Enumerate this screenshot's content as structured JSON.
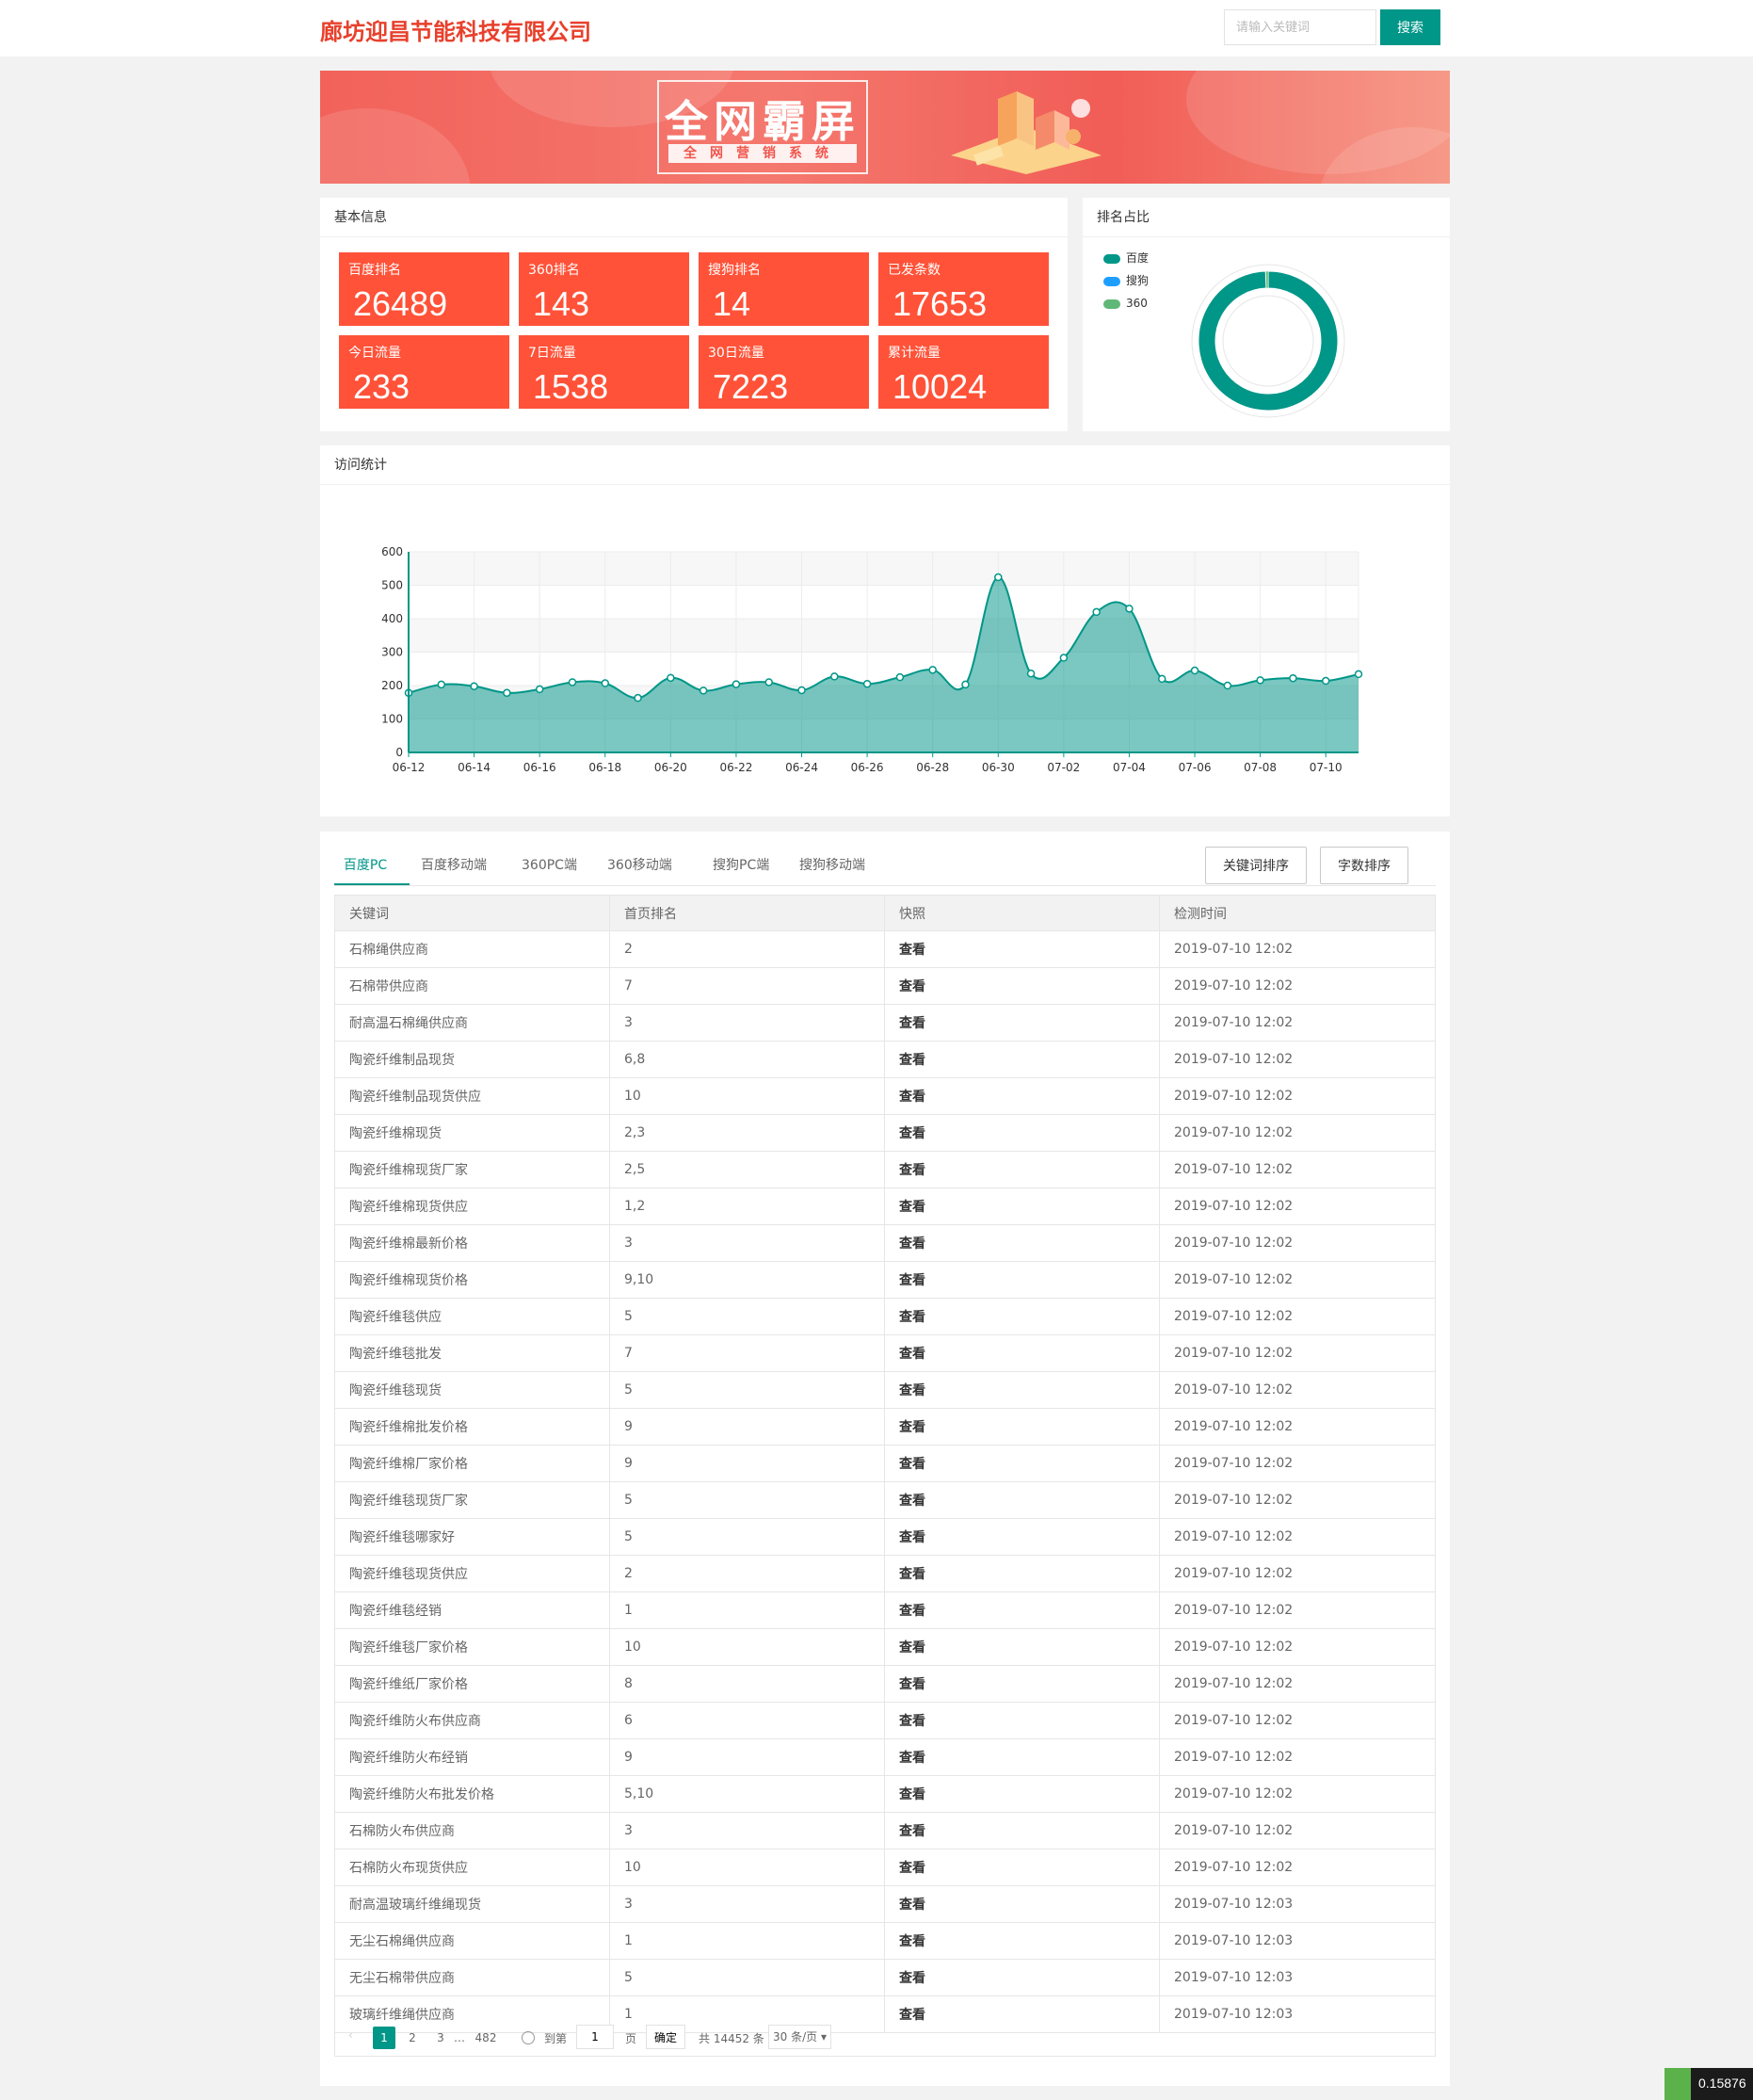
{
  "header": {
    "logo": "廊坊迎昌节能科技有限公司",
    "search_placeholder": "请输入关键词",
    "search_button": "搜索"
  },
  "banner": {
    "title": "全网霸屏",
    "subtitle": "全网营销系统"
  },
  "basic_info": {
    "title": "基本信息",
    "stats": [
      {
        "label": "百度排名",
        "value": "26489"
      },
      {
        "label": "360排名",
        "value": "143"
      },
      {
        "label": "搜狗排名",
        "value": "14"
      },
      {
        "label": "已发条数",
        "value": "17653"
      },
      {
        "label": "今日流量",
        "value": "233"
      },
      {
        "label": "7日流量",
        "value": "1538"
      },
      {
        "label": "30日流量",
        "value": "7223"
      },
      {
        "label": "累计流量",
        "value": "10024"
      }
    ]
  },
  "rank_ratio": {
    "title": "排名占比",
    "legend": [
      {
        "name": "百度",
        "color": "#009688"
      },
      {
        "name": "搜狗",
        "color": "#1e9fff"
      },
      {
        "name": "360",
        "color": "#5fb878"
      }
    ]
  },
  "visit_stats": {
    "title": "访问统计"
  },
  "chart_data": [
    {
      "type": "pie",
      "title": "",
      "categories": [
        "百度",
        "搜狗",
        "360"
      ],
      "values": [
        26489,
        14,
        143
      ],
      "colors": [
        "#009688",
        "#1e9fff",
        "#5fb878"
      ],
      "legend_position": "top-left"
    },
    {
      "type": "area",
      "title": "",
      "xlabel": "",
      "ylabel": "",
      "x": [
        "06-12",
        "06-13",
        "06-14",
        "06-15",
        "06-16",
        "06-17",
        "06-18",
        "06-19",
        "06-20",
        "06-21",
        "06-22",
        "06-23",
        "06-24",
        "06-25",
        "06-26",
        "06-27",
        "06-28",
        "06-29",
        "06-30",
        "07-01",
        "07-02",
        "07-03",
        "07-04",
        "07-05",
        "07-06",
        "07-07",
        "07-08",
        "07-09",
        "07-10",
        "07-11"
      ],
      "x_tick_labels": [
        "06-12",
        "06-14",
        "06-16",
        "06-18",
        "06-20",
        "06-22",
        "06-24",
        "06-26",
        "06-28",
        "06-30",
        "07-02",
        "07-04",
        "07-06",
        "07-08",
        "07-10"
      ],
      "values": [
        178,
        203,
        198,
        178,
        189,
        210,
        207,
        163,
        223,
        185,
        204,
        210,
        186,
        227,
        205,
        225,
        247,
        203,
        524,
        236,
        283,
        420,
        430,
        220,
        245,
        200,
        216,
        222,
        214,
        234
      ],
      "ylim": [
        0,
        600
      ],
      "yticks": [
        0,
        100,
        200,
        300,
        400,
        500,
        600
      ],
      "color": "#009688",
      "grid": true
    }
  ],
  "keywords_panel": {
    "tabs": [
      "百度PC",
      "百度移动端",
      "360PC端",
      "360移动端",
      "搜狗PC端",
      "搜狗移动端"
    ],
    "active_tab": 0,
    "sort_buttons": [
      "关键词排序",
      "字数排序"
    ],
    "columns": [
      "关键词",
      "首页排名",
      "快照",
      "检测时间"
    ],
    "rows": [
      [
        "石棉绳供应商",
        "2",
        "查看",
        "2019-07-10 12:02"
      ],
      [
        "石棉带供应商",
        "7",
        "查看",
        "2019-07-10 12:02"
      ],
      [
        "耐高温石棉绳供应商",
        "3",
        "查看",
        "2019-07-10 12:02"
      ],
      [
        "陶瓷纤维制品现货",
        "6,8",
        "查看",
        "2019-07-10 12:02"
      ],
      [
        "陶瓷纤维制品现货供应",
        "10",
        "查看",
        "2019-07-10 12:02"
      ],
      [
        "陶瓷纤维棉现货",
        "2,3",
        "查看",
        "2019-07-10 12:02"
      ],
      [
        "陶瓷纤维棉现货厂家",
        "2,5",
        "查看",
        "2019-07-10 12:02"
      ],
      [
        "陶瓷纤维棉现货供应",
        "1,2",
        "查看",
        "2019-07-10 12:02"
      ],
      [
        "陶瓷纤维棉最新价格",
        "3",
        "查看",
        "2019-07-10 12:02"
      ],
      [
        "陶瓷纤维棉现货价格",
        "9,10",
        "查看",
        "2019-07-10 12:02"
      ],
      [
        "陶瓷纤维毯供应",
        "5",
        "查看",
        "2019-07-10 12:02"
      ],
      [
        "陶瓷纤维毯批发",
        "7",
        "查看",
        "2019-07-10 12:02"
      ],
      [
        "陶瓷纤维毯现货",
        "5",
        "查看",
        "2019-07-10 12:02"
      ],
      [
        "陶瓷纤维棉批发价格",
        "9",
        "查看",
        "2019-07-10 12:02"
      ],
      [
        "陶瓷纤维棉厂家价格",
        "9",
        "查看",
        "2019-07-10 12:02"
      ],
      [
        "陶瓷纤维毯现货厂家",
        "5",
        "查看",
        "2019-07-10 12:02"
      ],
      [
        "陶瓷纤维毯哪家好",
        "5",
        "查看",
        "2019-07-10 12:02"
      ],
      [
        "陶瓷纤维毯现货供应",
        "2",
        "查看",
        "2019-07-10 12:02"
      ],
      [
        "陶瓷纤维毯经销",
        "1",
        "查看",
        "2019-07-10 12:02"
      ],
      [
        "陶瓷纤维毯厂家价格",
        "10",
        "查看",
        "2019-07-10 12:02"
      ],
      [
        "陶瓷纤维纸厂家价格",
        "8",
        "查看",
        "2019-07-10 12:02"
      ],
      [
        "陶瓷纤维防火布供应商",
        "6",
        "查看",
        "2019-07-10 12:02"
      ],
      [
        "陶瓷纤维防火布经销",
        "9",
        "查看",
        "2019-07-10 12:02"
      ],
      [
        "陶瓷纤维防火布批发价格",
        "5,10",
        "查看",
        "2019-07-10 12:02"
      ],
      [
        "石棉防火布供应商",
        "3",
        "查看",
        "2019-07-10 12:02"
      ],
      [
        "石棉防火布现货供应",
        "10",
        "查看",
        "2019-07-10 12:02"
      ],
      [
        "耐高温玻璃纤维绳现货",
        "3",
        "查看",
        "2019-07-10 12:03"
      ],
      [
        "无尘石棉绳供应商",
        "1",
        "查看",
        "2019-07-10 12:03"
      ],
      [
        "无尘石棉带供应商",
        "5",
        "查看",
        "2019-07-10 12:03"
      ],
      [
        "玻璃纤维绳供应商",
        "1",
        "查看",
        "2019-07-10 12:03"
      ]
    ],
    "pagination": {
      "prev": "‹",
      "pages": [
        "1",
        "2",
        "3",
        "…",
        "482"
      ],
      "current": "1",
      "goto_label": "到第",
      "goto_value": "1",
      "page_unit": "页",
      "confirm": "确定",
      "total": "共 14452 条",
      "per_page": "30 条/页"
    }
  },
  "corner": {
    "text": "0.15876"
  }
}
